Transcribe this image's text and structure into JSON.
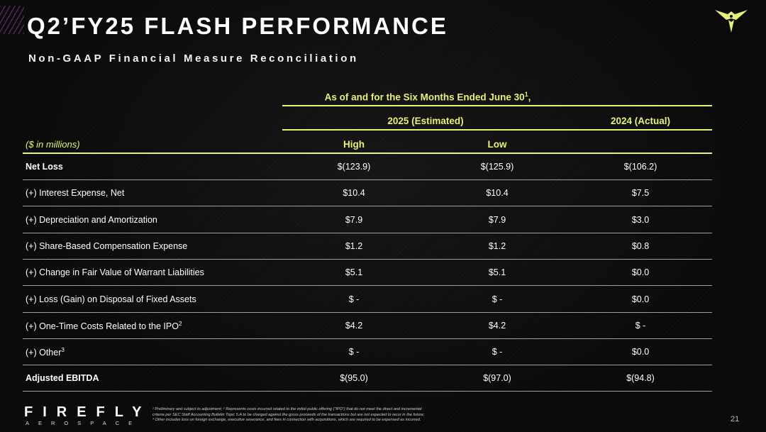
{
  "title": "Q2’FY25 FLASH PERFORMANCE",
  "subtitle": "Non-GAAP Financial Measure Reconciliation",
  "table": {
    "header_top": "As of and for the Six Months Ended June 30",
    "header_top_sup": "1",
    "header_2025": "2025 (Estimated)",
    "header_2024": "2024 (Actual)",
    "units": "($ in millions)",
    "col_high": "High",
    "col_low": "Low",
    "rows": [
      {
        "label": "Net Loss",
        "sup": "",
        "high": "$(123.9)",
        "low": "$(125.9)",
        "actual": "$(106.2)"
      },
      {
        "label": "(+) Interest Expense, Net",
        "sup": "",
        "high": "$10.4",
        "low": "$10.4",
        "actual": "$7.5"
      },
      {
        "label": "(+) Depreciation and Amortization",
        "sup": "",
        "high": "$7.9",
        "low": "$7.9",
        "actual": "$3.0"
      },
      {
        "label": "(+) Share-Based Compensation Expense",
        "sup": "",
        "high": "$1.2",
        "low": "$1.2",
        "actual": "$0.8"
      },
      {
        "label": "(+) Change in Fair Value of Warrant Liabilities",
        "sup": "",
        "high": "$5.1",
        "low": "$5.1",
        "actual": "$0.0"
      },
      {
        "label": "(+) Loss (Gain) on Disposal of Fixed Assets",
        "sup": "",
        "high": "$ -",
        "low": "$ -",
        "actual": "$0.0"
      },
      {
        "label": "(+) One-Time Costs Related to the IPO",
        "sup": "2",
        "high": "$4.2",
        "low": "$4.2",
        "actual": "$ -"
      },
      {
        "label": "(+) Other",
        "sup": "3",
        "high": "$ -",
        "low": "$ -",
        "actual": "$0.0"
      },
      {
        "label": "Adjusted EBITDA",
        "sup": "",
        "high": "$(95.0)",
        "low": "$(97.0)",
        "actual": "$(94.8)"
      }
    ]
  },
  "brand": {
    "name": "FIREFLY",
    "sub": "AEROSPACE"
  },
  "footnotes": [
    "¹ Preliminary and subject to adjustment; ² Represents costs incurred related to the initial public offering (“IPO”) that do not meet the direct and incremental",
    "criteria per SEC Staff Accounting Bulletin Topic 5.A to be charged against the gross proceeds of the transactions but are not expected to recur in the future;",
    "³ Other includes loss on foreign exchange, executive severance, and fees in connection with acquisitions, which are required to be expensed as incurred."
  ],
  "page_number": "21",
  "colors": {
    "accent": "#e8f07a",
    "background": "#0b0b0b",
    "hatch": "#9a3fb0"
  },
  "icons": {
    "logo": "firefly-logo-icon"
  }
}
